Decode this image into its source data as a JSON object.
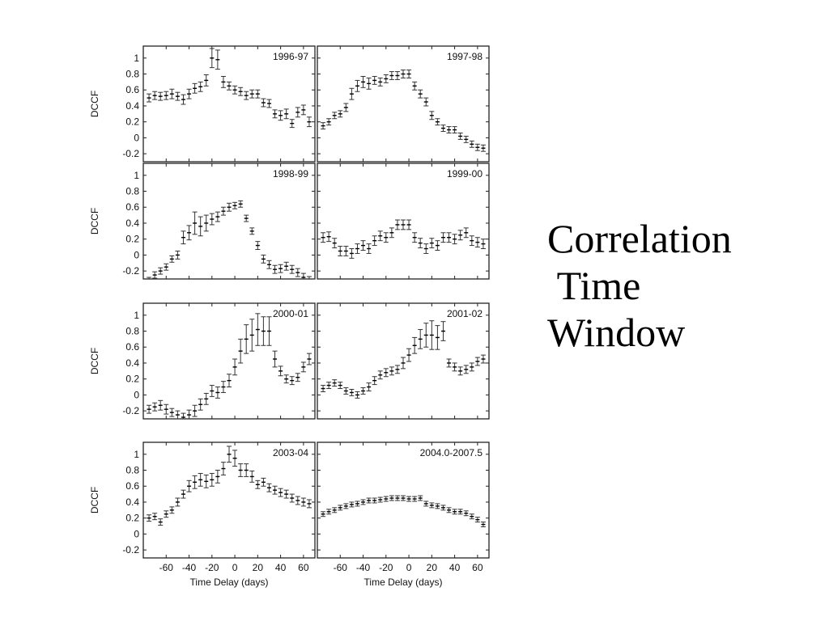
{
  "caption": {
    "line1": "Correlation",
    "line2": " Time",
    "line3": "Window"
  },
  "axes": {
    "ylabel": "DCCF",
    "xlabel": "Time Delay (days)",
    "xticks": [
      -60,
      -40,
      -20,
      0,
      20,
      40,
      60
    ],
    "yticks": [
      -0.2,
      0,
      0.2,
      0.4,
      0.6,
      0.8,
      1
    ],
    "ytick_labels": [
      "-0.2",
      "0",
      "0.2",
      "0.4",
      "0.6",
      "0.8",
      "1"
    ],
    "xlim": [
      -80,
      70
    ],
    "ylim": [
      -0.3,
      1.15
    ]
  },
  "chart_data": [
    {
      "type": "scatter",
      "title": "1996-97",
      "error_bars": true,
      "x": [
        -75,
        -70,
        -65,
        -60,
        -55,
        -50,
        -45,
        -40,
        -35,
        -30,
        -25,
        -20,
        -15,
        -10,
        -5,
        0,
        5,
        10,
        15,
        20,
        25,
        30,
        35,
        40,
        45,
        50,
        55,
        60,
        65
      ],
      "y": [
        0.5,
        0.53,
        0.52,
        0.53,
        0.55,
        0.52,
        0.48,
        0.55,
        0.62,
        0.64,
        0.72,
        1.0,
        0.98,
        0.7,
        0.65,
        0.6,
        0.58,
        0.53,
        0.55,
        0.55,
        0.44,
        0.43,
        0.3,
        0.28,
        0.3,
        0.18,
        0.32,
        0.35,
        0.2
      ],
      "err": [
        0.05,
        0.05,
        0.05,
        0.05,
        0.06,
        0.05,
        0.06,
        0.06,
        0.06,
        0.06,
        0.07,
        0.12,
        0.12,
        0.07,
        0.05,
        0.05,
        0.05,
        0.05,
        0.05,
        0.05,
        0.05,
        0.05,
        0.05,
        0.06,
        0.06,
        0.05,
        0.06,
        0.06,
        0.06
      ]
    },
    {
      "type": "scatter",
      "title": "1997-98",
      "error_bars": true,
      "x": [
        -75,
        -70,
        -65,
        -60,
        -55,
        -50,
        -45,
        -40,
        -35,
        -30,
        -25,
        -20,
        -15,
        -10,
        -5,
        0,
        5,
        10,
        15,
        20,
        25,
        30,
        35,
        40,
        45,
        50,
        55,
        60,
        65
      ],
      "y": [
        0.15,
        0.2,
        0.28,
        0.3,
        0.38,
        0.55,
        0.65,
        0.7,
        0.68,
        0.72,
        0.7,
        0.74,
        0.78,
        0.78,
        0.8,
        0.8,
        0.65,
        0.55,
        0.45,
        0.28,
        0.2,
        0.12,
        0.1,
        0.1,
        0.02,
        -0.02,
        -0.08,
        -0.12,
        -0.13
      ],
      "err": [
        0.04,
        0.04,
        0.04,
        0.04,
        0.05,
        0.07,
        0.07,
        0.07,
        0.07,
        0.05,
        0.05,
        0.05,
        0.05,
        0.05,
        0.05,
        0.05,
        0.05,
        0.05,
        0.05,
        0.05,
        0.04,
        0.04,
        0.04,
        0.04,
        0.04,
        0.04,
        0.04,
        0.04,
        0.04
      ]
    },
    {
      "type": "scatter",
      "title": "1998-99",
      "error_bars": true,
      "x": [
        -75,
        -70,
        -65,
        -60,
        -55,
        -50,
        -45,
        -40,
        -35,
        -30,
        -25,
        -20,
        -15,
        -10,
        -5,
        0,
        5,
        10,
        15,
        20,
        25,
        30,
        35,
        40,
        45,
        50,
        55,
        60,
        65
      ],
      "y": [
        -0.32,
        -0.25,
        -0.2,
        -0.15,
        -0.05,
        0.0,
        0.22,
        0.28,
        0.4,
        0.36,
        0.4,
        0.45,
        0.48,
        0.55,
        0.6,
        0.62,
        0.64,
        0.46,
        0.3,
        0.12,
        -0.05,
        -0.12,
        -0.18,
        -0.17,
        -0.14,
        -0.18,
        -0.22,
        -0.28,
        -0.32
      ],
      "err": [
        0.04,
        0.04,
        0.04,
        0.04,
        0.04,
        0.05,
        0.08,
        0.09,
        0.14,
        0.12,
        0.1,
        0.07,
        0.06,
        0.05,
        0.05,
        0.04,
        0.04,
        0.04,
        0.04,
        0.05,
        0.05,
        0.05,
        0.05,
        0.05,
        0.05,
        0.05,
        0.05,
        0.05,
        0.05
      ]
    },
    {
      "type": "scatter",
      "title": "1999-00",
      "error_bars": true,
      "x": [
        -75,
        -70,
        -65,
        -60,
        -55,
        -50,
        -45,
        -40,
        -35,
        -30,
        -25,
        -20,
        -15,
        -10,
        -5,
        0,
        5,
        10,
        15,
        20,
        25,
        30,
        35,
        40,
        45,
        50,
        55,
        60,
        65
      ],
      "y": [
        0.22,
        0.23,
        0.15,
        0.05,
        0.05,
        0.02,
        0.08,
        0.12,
        0.08,
        0.18,
        0.24,
        0.22,
        0.28,
        0.38,
        0.38,
        0.38,
        0.22,
        0.15,
        0.08,
        0.15,
        0.12,
        0.22,
        0.22,
        0.2,
        0.25,
        0.28,
        0.18,
        0.16,
        0.14
      ],
      "err": [
        0.06,
        0.06,
        0.06,
        0.06,
        0.06,
        0.06,
        0.06,
        0.06,
        0.06,
        0.06,
        0.06,
        0.06,
        0.06,
        0.06,
        0.06,
        0.06,
        0.06,
        0.06,
        0.06,
        0.06,
        0.06,
        0.06,
        0.06,
        0.06,
        0.06,
        0.06,
        0.06,
        0.06,
        0.06
      ]
    },
    {
      "type": "scatter",
      "title": "2000-01",
      "error_bars": true,
      "x": [
        -75,
        -70,
        -65,
        -60,
        -55,
        -50,
        -45,
        -40,
        -35,
        -30,
        -25,
        -20,
        -15,
        -10,
        -5,
        0,
        5,
        10,
        15,
        20,
        25,
        30,
        35,
        40,
        45,
        50,
        55,
        60,
        65
      ],
      "y": [
        -0.18,
        -0.15,
        -0.13,
        -0.18,
        -0.22,
        -0.25,
        -0.28,
        -0.25,
        -0.2,
        -0.12,
        -0.05,
        0.05,
        0.03,
        0.1,
        0.18,
        0.35,
        0.55,
        0.7,
        0.75,
        0.82,
        0.8,
        0.8,
        0.45,
        0.3,
        0.2,
        0.18,
        0.22,
        0.35,
        0.45
      ],
      "err": [
        0.05,
        0.05,
        0.06,
        0.06,
        0.05,
        0.05,
        0.05,
        0.06,
        0.07,
        0.07,
        0.07,
        0.07,
        0.07,
        0.07,
        0.08,
        0.1,
        0.15,
        0.18,
        0.2,
        0.2,
        0.18,
        0.18,
        0.1,
        0.06,
        0.05,
        0.05,
        0.05,
        0.06,
        0.07
      ]
    },
    {
      "type": "scatter",
      "title": "2001-02",
      "error_bars": true,
      "x": [
        -75,
        -70,
        -65,
        -60,
        -55,
        -50,
        -45,
        -40,
        -35,
        -30,
        -25,
        -20,
        -15,
        -10,
        -5,
        0,
        5,
        10,
        15,
        20,
        25,
        30,
        35,
        40,
        45,
        50,
        55,
        60,
        65
      ],
      "y": [
        0.08,
        0.12,
        0.15,
        0.12,
        0.05,
        0.03,
        0.0,
        0.05,
        0.1,
        0.18,
        0.25,
        0.28,
        0.3,
        0.32,
        0.4,
        0.5,
        0.62,
        0.7,
        0.75,
        0.75,
        0.72,
        0.8,
        0.4,
        0.35,
        0.3,
        0.32,
        0.35,
        0.42,
        0.45
      ],
      "err": [
        0.04,
        0.04,
        0.04,
        0.04,
        0.04,
        0.04,
        0.04,
        0.04,
        0.05,
        0.05,
        0.05,
        0.05,
        0.05,
        0.05,
        0.07,
        0.08,
        0.1,
        0.12,
        0.15,
        0.18,
        0.15,
        0.12,
        0.05,
        0.05,
        0.05,
        0.05,
        0.05,
        0.05,
        0.05
      ]
    },
    {
      "type": "scatter",
      "title": "2003-04",
      "error_bars": true,
      "x": [
        -75,
        -70,
        -65,
        -60,
        -55,
        -50,
        -45,
        -40,
        -35,
        -30,
        -25,
        -20,
        -15,
        -10,
        -5,
        0,
        5,
        10,
        15,
        20,
        25,
        30,
        35,
        40,
        45,
        50,
        55,
        60,
        65
      ],
      "y": [
        0.2,
        0.22,
        0.15,
        0.25,
        0.3,
        0.4,
        0.5,
        0.6,
        0.65,
        0.68,
        0.66,
        0.68,
        0.72,
        0.82,
        1.0,
        0.95,
        0.8,
        0.8,
        0.72,
        0.62,
        0.65,
        0.58,
        0.55,
        0.52,
        0.5,
        0.45,
        0.42,
        0.4,
        0.38
      ],
      "err": [
        0.04,
        0.04,
        0.04,
        0.04,
        0.04,
        0.05,
        0.05,
        0.07,
        0.08,
        0.08,
        0.08,
        0.08,
        0.08,
        0.08,
        0.1,
        0.1,
        0.08,
        0.08,
        0.07,
        0.05,
        0.05,
        0.05,
        0.05,
        0.05,
        0.05,
        0.05,
        0.05,
        0.05,
        0.05
      ]
    },
    {
      "type": "scatter",
      "title": "2004.0-2007.5",
      "error_bars": true,
      "x": [
        -75,
        -70,
        -65,
        -60,
        -55,
        -50,
        -45,
        -40,
        -35,
        -30,
        -25,
        -20,
        -15,
        -10,
        -5,
        0,
        5,
        10,
        15,
        20,
        25,
        30,
        35,
        40,
        45,
        50,
        55,
        60,
        65
      ],
      "y": [
        0.25,
        0.28,
        0.3,
        0.33,
        0.35,
        0.37,
        0.38,
        0.4,
        0.42,
        0.42,
        0.43,
        0.44,
        0.45,
        0.45,
        0.45,
        0.44,
        0.44,
        0.45,
        0.38,
        0.36,
        0.35,
        0.33,
        0.3,
        0.28,
        0.28,
        0.26,
        0.22,
        0.18,
        0.12
      ],
      "err": [
        0.03,
        0.03,
        0.03,
        0.03,
        0.03,
        0.03,
        0.03,
        0.03,
        0.03,
        0.03,
        0.03,
        0.03,
        0.03,
        0.03,
        0.03,
        0.03,
        0.03,
        0.03,
        0.03,
        0.03,
        0.03,
        0.03,
        0.03,
        0.03,
        0.03,
        0.03,
        0.03,
        0.03,
        0.03
      ]
    }
  ]
}
